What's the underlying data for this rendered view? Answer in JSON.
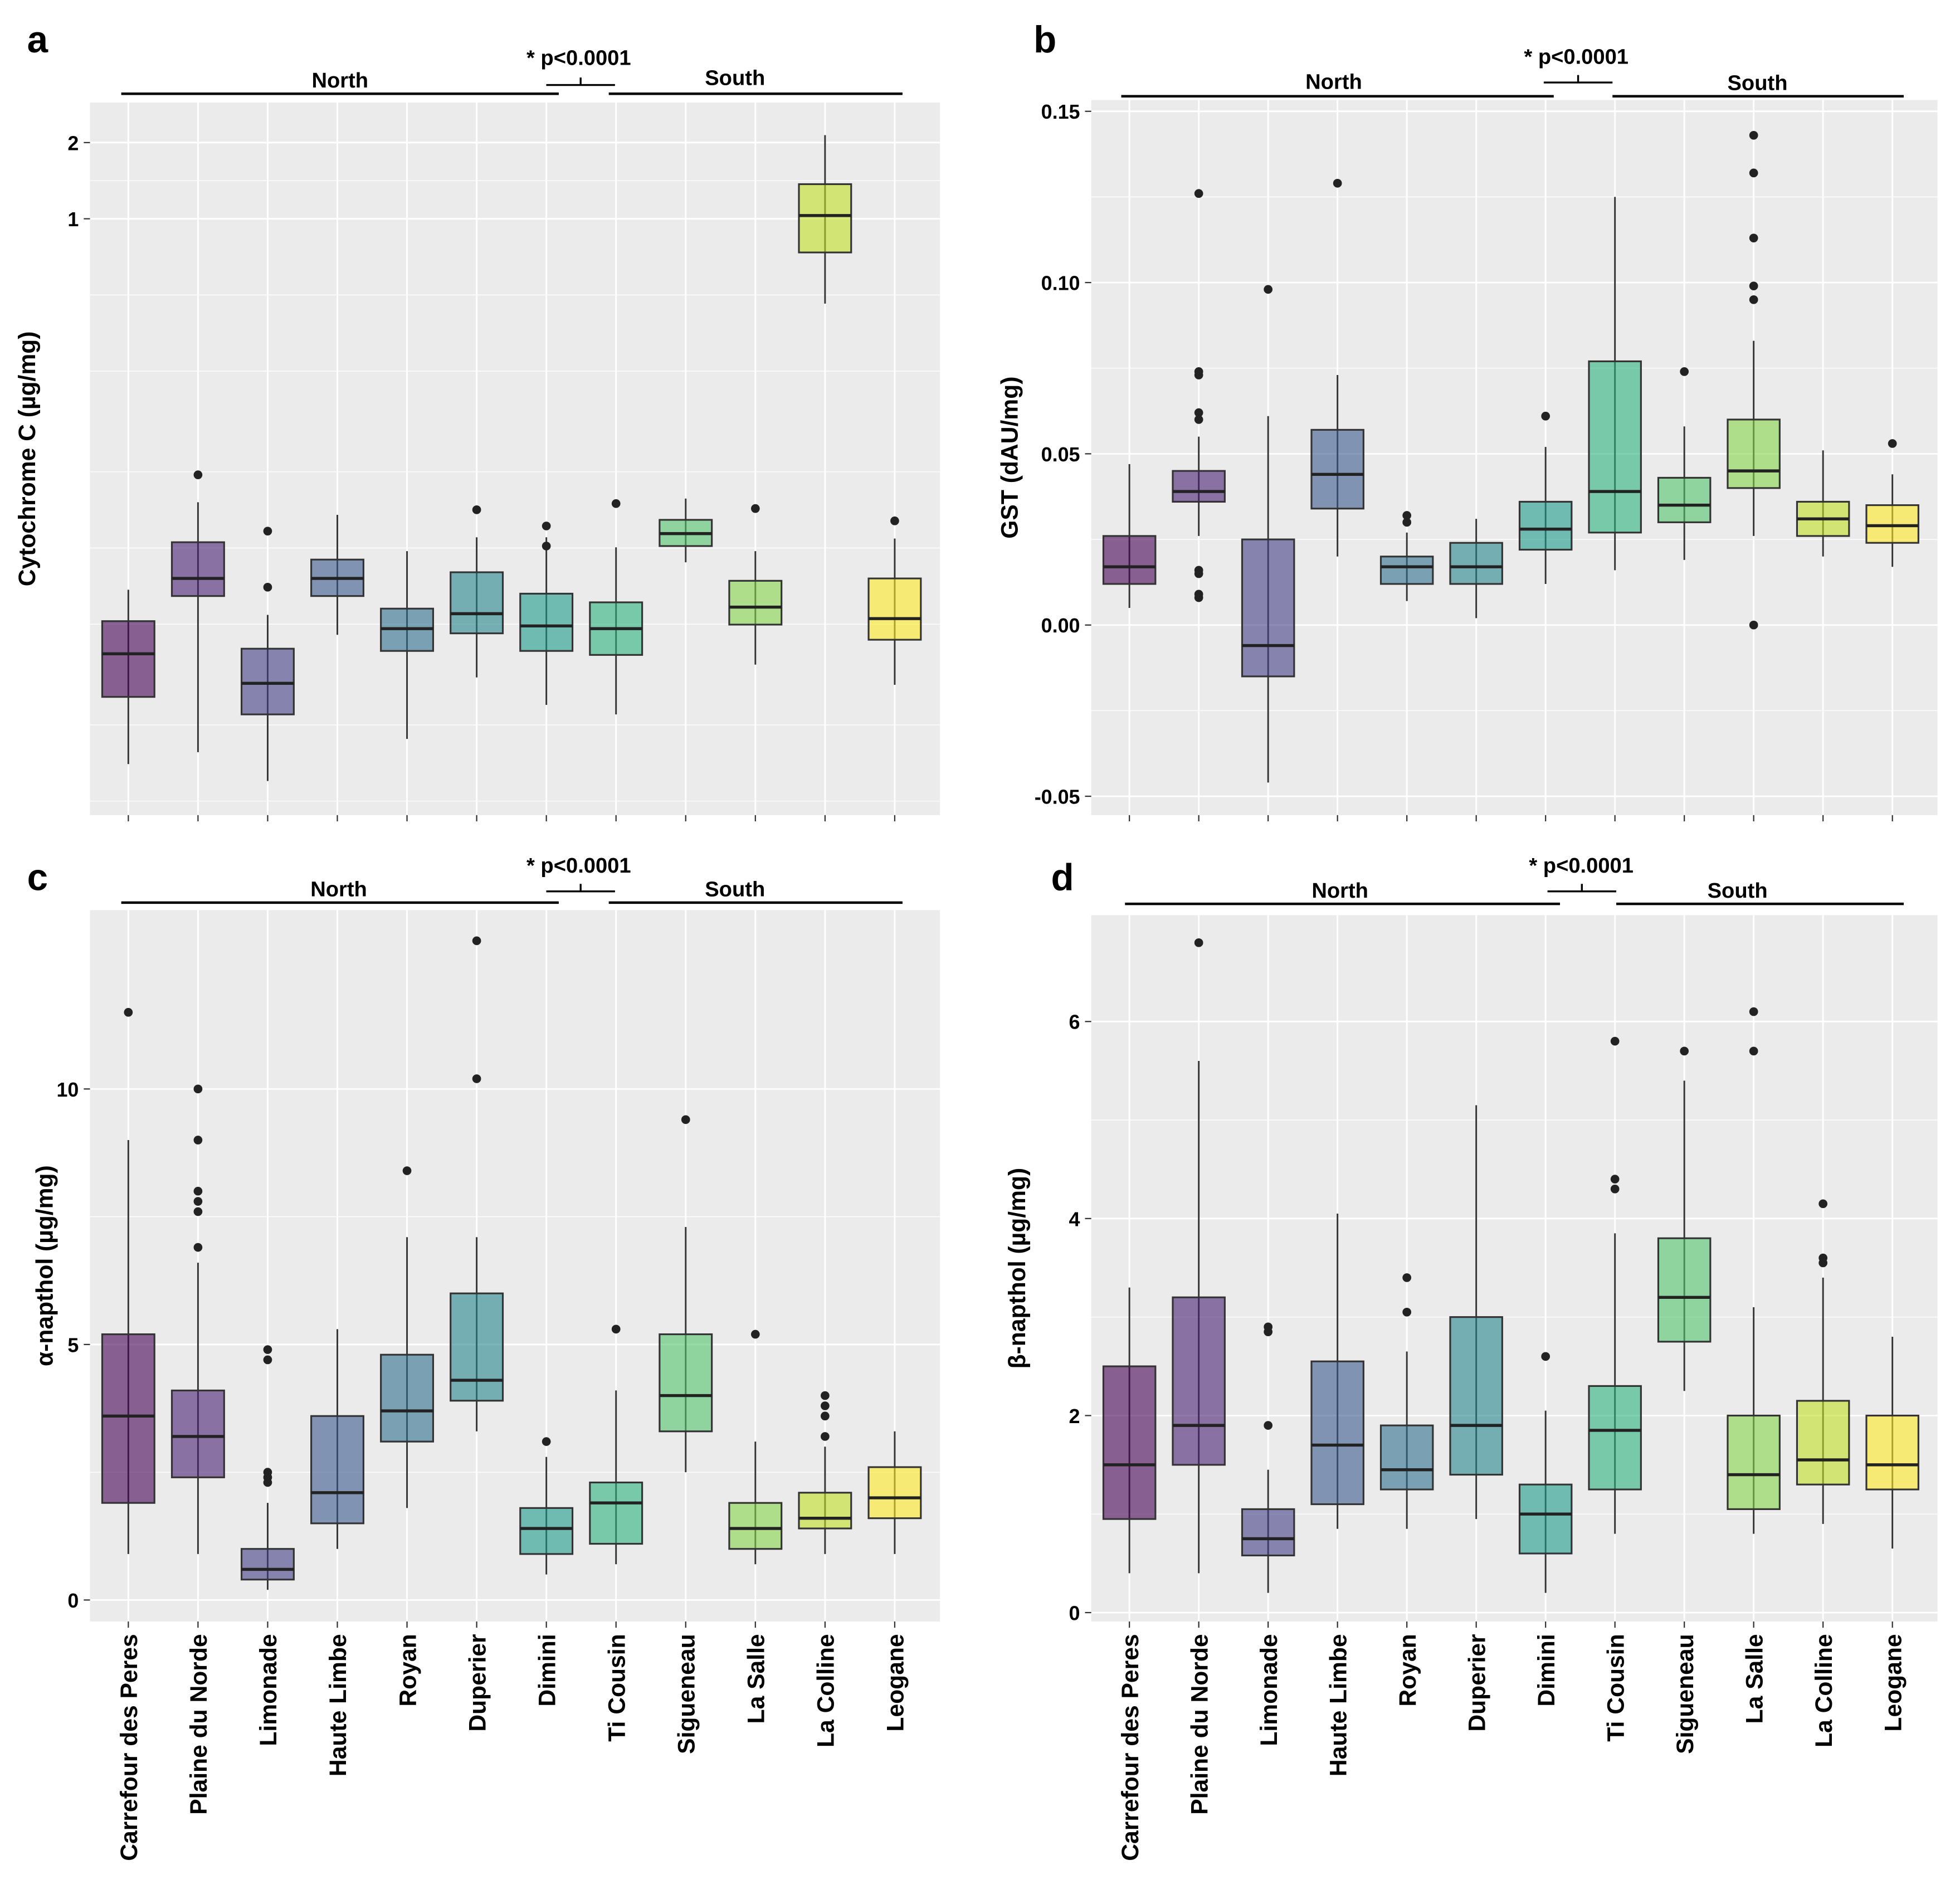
{
  "chart_data": [
    {
      "panel": "a",
      "type": "box",
      "yscale": "log",
      "ylabel": "Cytochrome C (µg/mg)",
      "yticks": [
        1,
        2
      ],
      "ytick_labels": [
        "1",
        "2"
      ],
      "ylim": [
        0.0044,
        2.88
      ],
      "xticklabels_shown": false,
      "groups": {
        "north": "North",
        "south": "South",
        "test": "* p<0.0001"
      },
      "categories": [
        "Carrefour des Peres",
        "Plaine du Norde",
        "Limonade",
        "Haute Limbe",
        "Royan",
        "Duperier",
        "Dimini",
        "Ti Cousin",
        "Sigueneau",
        "La Salle",
        "La Colline",
        "Leogane"
      ],
      "stats": [
        {
          "min": 0.007,
          "q1": 0.0129,
          "median": 0.0191,
          "q3": 0.0257,
          "max": 0.0342,
          "outliers": []
        },
        {
          "min": 0.0078,
          "q1": 0.0323,
          "median": 0.0379,
          "q3": 0.0527,
          "max": 0.0758,
          "outliers": [
            0.0973
          ]
        },
        {
          "min": 0.006,
          "q1": 0.011,
          "median": 0.0146,
          "q3": 0.02,
          "max": 0.0272,
          "outliers": [
            0.0583,
            0.035
          ]
        },
        {
          "min": 0.0227,
          "q1": 0.0323,
          "median": 0.0379,
          "q3": 0.045,
          "max": 0.0676,
          "outliers": []
        },
        {
          "min": 0.0088,
          "q1": 0.0196,
          "median": 0.024,
          "q3": 0.0288,
          "max": 0.0486,
          "outliers": []
        },
        {
          "min": 0.0154,
          "q1": 0.023,
          "median": 0.0275,
          "q3": 0.0401,
          "max": 0.0551,
          "outliers": [
            0.0708
          ]
        },
        {
          "min": 0.012,
          "q1": 0.0196,
          "median": 0.0246,
          "q3": 0.033,
          "max": 0.0551,
          "outliers": [
            0.0611,
            0.0509
          ]
        },
        {
          "min": 0.011,
          "q1": 0.0189,
          "median": 0.024,
          "q3": 0.0305,
          "max": 0.0503,
          "outliers": [
            0.0749
          ]
        },
        {
          "min": 0.0439,
          "q1": 0.0509,
          "median": 0.057,
          "q3": 0.0646,
          "max": 0.0784,
          "outliers": []
        },
        {
          "min": 0.0173,
          "q1": 0.0249,
          "median": 0.0292,
          "q3": 0.0371,
          "max": 0.0486,
          "outliers": [
            0.0716
          ]
        },
        {
          "min": 0.462,
          "q1": 0.736,
          "median": 1.03,
          "q3": 1.37,
          "max": 2.14,
          "outliers": []
        },
        {
          "min": 0.0144,
          "q1": 0.0217,
          "median": 0.0263,
          "q3": 0.0379,
          "max": 0.0545,
          "outliers": [
            0.064
          ]
        }
      ]
    },
    {
      "panel": "b",
      "type": "box",
      "yscale": "linear",
      "ylabel": "GST (dAU/mg)",
      "yticks": [
        -0.05,
        0,
        0.05,
        0.1,
        0.15
      ],
      "ytick_labels": [
        "-0.05",
        "0.00",
        "0.05",
        "0.10",
        "0.15"
      ],
      "ylim": [
        -0.0555,
        0.1533
      ],
      "xticklabels_shown": false,
      "groups": {
        "north": "North",
        "south": "South",
        "test": "* p<0.0001"
      },
      "categories": [
        "Carrefour des Peres",
        "Plaine du Norde",
        "Limonade",
        "Haute Limbe",
        "Royan",
        "Duperier",
        "Dimini",
        "Ti Cousin",
        "Sigueneau",
        "La Salle",
        "La Colline",
        "Leogane"
      ],
      "stats": [
        {
          "min": 0.005,
          "q1": 0.012,
          "median": 0.017,
          "q3": 0.026,
          "max": 0.047,
          "outliers": []
        },
        {
          "min": 0.026,
          "q1": 0.036,
          "median": 0.039,
          "q3": 0.045,
          "max": 0.055,
          "outliers": [
            0.126,
            0.074,
            0.073,
            0.062,
            0.06,
            0.016,
            0.015,
            0.009,
            0.008
          ]
        },
        {
          "min": -0.046,
          "q1": -0.015,
          "median": -0.006,
          "q3": 0.025,
          "max": 0.061,
          "outliers": [
            0.098
          ]
        },
        {
          "min": 0.02,
          "q1": 0.034,
          "median": 0.044,
          "q3": 0.057,
          "max": 0.073,
          "outliers": [
            0.129
          ]
        },
        {
          "min": 0.007,
          "q1": 0.012,
          "median": 0.017,
          "q3": 0.02,
          "max": 0.027,
          "outliers": [
            0.032,
            0.03
          ]
        },
        {
          "min": 0.002,
          "q1": 0.012,
          "median": 0.017,
          "q3": 0.024,
          "max": 0.031,
          "outliers": []
        },
        {
          "min": 0.012,
          "q1": 0.022,
          "median": 0.028,
          "q3": 0.036,
          "max": 0.052,
          "outliers": [
            0.061
          ]
        },
        {
          "min": 0.016,
          "q1": 0.027,
          "median": 0.039,
          "q3": 0.077,
          "max": 0.125,
          "outliers": []
        },
        {
          "min": 0.019,
          "q1": 0.03,
          "median": 0.035,
          "q3": 0.043,
          "max": 0.058,
          "outliers": [
            0.074
          ]
        },
        {
          "min": 0.026,
          "q1": 0.04,
          "median": 0.045,
          "q3": 0.06,
          "max": 0.083,
          "outliers": [
            0.143,
            0.132,
            0.113,
            0.099,
            0.095,
            0.0
          ]
        },
        {
          "min": 0.02,
          "q1": 0.026,
          "median": 0.031,
          "q3": 0.036,
          "max": 0.051,
          "outliers": []
        },
        {
          "min": 0.017,
          "q1": 0.024,
          "median": 0.029,
          "q3": 0.035,
          "max": 0.044,
          "outliers": [
            0.053
          ]
        }
      ]
    },
    {
      "panel": "c",
      "type": "box",
      "yscale": "linear",
      "ylabel": "α-napthol (µg/mg)",
      "yticks": [
        0,
        5,
        10
      ],
      "ytick_labels": [
        "0",
        "5",
        "10"
      ],
      "ylim": [
        -0.42,
        13.5
      ],
      "xticklabels_shown": true,
      "groups": {
        "north": "North",
        "south": "South",
        "test": "* p<0.0001"
      },
      "categories": [
        "Carrefour des Peres",
        "Plaine du Norde",
        "Limonade",
        "Haute Limbe",
        "Royan",
        "Duperier",
        "Dimini",
        "Ti Cousin",
        "Sigueneau",
        "La Salle",
        "La Colline",
        "Leogane"
      ],
      "stats": [
        {
          "min": 0.9,
          "q1": 1.9,
          "median": 3.6,
          "q3": 5.2,
          "max": 9.0,
          "outliers": [
            11.5
          ]
        },
        {
          "min": 0.9,
          "q1": 2.4,
          "median": 3.2,
          "q3": 4.1,
          "max": 6.6,
          "outliers": [
            10.0,
            9.0,
            8.0,
            7.8,
            7.6,
            6.9
          ]
        },
        {
          "min": 0.2,
          "q1": 0.4,
          "median": 0.6,
          "q3": 1.0,
          "max": 1.9,
          "outliers": [
            4.9,
            4.7,
            2.5,
            2.4,
            2.3
          ]
        },
        {
          "min": 1.0,
          "q1": 1.5,
          "median": 2.1,
          "q3": 3.6,
          "max": 5.3,
          "outliers": []
        },
        {
          "min": 1.8,
          "q1": 3.1,
          "median": 3.7,
          "q3": 4.8,
          "max": 7.1,
          "outliers": [
            8.4
          ]
        },
        {
          "min": 3.3,
          "q1": 3.9,
          "median": 4.3,
          "q3": 6.0,
          "max": 7.1,
          "outliers": [
            12.9,
            10.2
          ]
        },
        {
          "min": 0.5,
          "q1": 0.9,
          "median": 1.4,
          "q3": 1.8,
          "max": 2.8,
          "outliers": [
            3.1
          ]
        },
        {
          "min": 0.7,
          "q1": 1.1,
          "median": 1.9,
          "q3": 2.3,
          "max": 4.1,
          "outliers": [
            5.3
          ]
        },
        {
          "min": 2.5,
          "q1": 3.3,
          "median": 4.0,
          "q3": 5.2,
          "max": 7.3,
          "outliers": [
            9.4
          ]
        },
        {
          "min": 0.7,
          "q1": 1.0,
          "median": 1.4,
          "q3": 1.9,
          "max": 3.1,
          "outliers": [
            5.2
          ]
        },
        {
          "min": 0.9,
          "q1": 1.4,
          "median": 1.6,
          "q3": 2.1,
          "max": 3.0,
          "outliers": [
            4.0,
            3.8,
            3.6,
            3.2
          ]
        },
        {
          "min": 0.9,
          "q1": 1.6,
          "median": 2.0,
          "q3": 2.6,
          "max": 3.3,
          "outliers": []
        }
      ]
    },
    {
      "panel": "d",
      "type": "box",
      "yscale": "linear",
      "ylabel": "β-napthol (µg/mg)",
      "yticks": [
        0,
        2,
        4,
        6
      ],
      "ytick_labels": [
        "0",
        "2",
        "4",
        "6"
      ],
      "ylim": [
        -0.09,
        7.08
      ],
      "xticklabels_shown": true,
      "groups": {
        "north": "North",
        "south": "South",
        "test": "* p<0.0001"
      },
      "categories": [
        "Carrefour des Peres",
        "Plaine du Norde",
        "Limonade",
        "Haute Limbe",
        "Royan",
        "Duperier",
        "Dimini",
        "Ti Cousin",
        "Sigueneau",
        "La Salle",
        "La Colline",
        "Leogane"
      ],
      "stats": [
        {
          "min": 0.4,
          "q1": 0.95,
          "median": 1.5,
          "q3": 2.5,
          "max": 3.3,
          "outliers": []
        },
        {
          "min": 0.4,
          "q1": 1.5,
          "median": 1.9,
          "q3": 3.2,
          "max": 5.6,
          "outliers": [
            6.8
          ]
        },
        {
          "min": 0.2,
          "q1": 0.58,
          "median": 0.75,
          "q3": 1.05,
          "max": 1.45,
          "outliers": [
            2.9,
            2.85,
            1.9
          ]
        },
        {
          "min": 0.85,
          "q1": 1.1,
          "median": 1.7,
          "q3": 2.55,
          "max": 4.05,
          "outliers": []
        },
        {
          "min": 0.85,
          "q1": 1.25,
          "median": 1.45,
          "q3": 1.9,
          "max": 2.65,
          "outliers": [
            3.4,
            3.05
          ]
        },
        {
          "min": 0.95,
          "q1": 1.4,
          "median": 1.9,
          "q3": 3.0,
          "max": 5.15,
          "outliers": []
        },
        {
          "min": 0.2,
          "q1": 0.6,
          "median": 1.0,
          "q3": 1.3,
          "max": 2.05,
          "outliers": [
            2.6
          ]
        },
        {
          "min": 0.8,
          "q1": 1.25,
          "median": 1.85,
          "q3": 2.3,
          "max": 3.85,
          "outliers": [
            5.8,
            4.4,
            4.3
          ]
        },
        {
          "min": 2.25,
          "q1": 2.75,
          "median": 3.2,
          "q3": 3.8,
          "max": 5.4,
          "outliers": [
            5.7
          ]
        },
        {
          "min": 0.8,
          "q1": 1.05,
          "median": 1.4,
          "q3": 2.0,
          "max": 3.1,
          "outliers": [
            6.1,
            5.7
          ]
        },
        {
          "min": 0.9,
          "q1": 1.3,
          "median": 1.55,
          "q3": 2.15,
          "max": 3.4,
          "outliers": [
            4.15,
            3.6,
            3.55
          ]
        },
        {
          "min": 0.65,
          "q1": 1.25,
          "median": 1.5,
          "q3": 2.0,
          "max": 2.8,
          "outliers": []
        }
      ]
    }
  ],
  "colors": [
    "#440154",
    "#482173",
    "#433E85",
    "#38598C",
    "#2D708E",
    "#25858E",
    "#1E9B8A",
    "#2BB07F",
    "#51C56A",
    "#85D54A",
    "#C2DF23",
    "#FDE725"
  ],
  "panel_background": "#EBEBEB"
}
